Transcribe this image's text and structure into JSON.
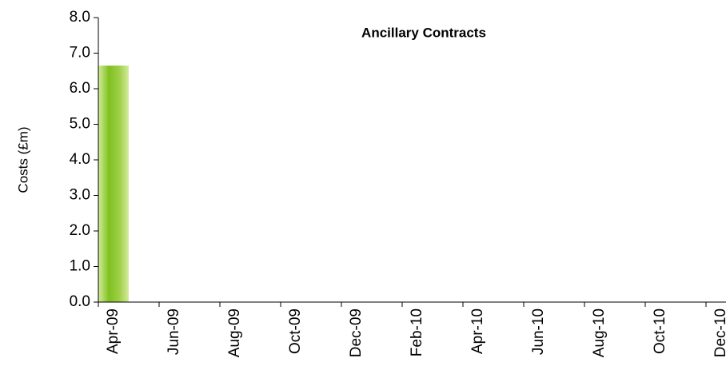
{
  "chart_data": {
    "type": "bar",
    "title": "Ancillary Contracts",
    "y_label": "Costs (£m)",
    "categories": [
      "Apr-09",
      null,
      "Jun-09",
      null,
      "Aug-09",
      null,
      "Oct-09",
      null,
      "Dec-09",
      null,
      "Feb-10",
      null,
      "Apr-10",
      null,
      "Jun-10",
      null,
      "Aug-10",
      null,
      "Oct-10",
      null,
      "Dec-10",
      null
    ],
    "values": [
      6.65,
      null,
      null,
      null,
      null,
      null,
      null,
      null,
      null,
      null,
      null,
      null,
      null,
      null,
      null,
      null,
      null,
      null,
      null,
      null,
      null,
      null
    ],
    "color": "#8cc63f",
    "ylim": [
      0,
      8
    ],
    "yticks": [
      {
        "value": 0,
        "label": "0.0"
      },
      {
        "value": 1,
        "label": "1.0"
      },
      {
        "value": 2,
        "label": "2.0"
      },
      {
        "value": 3,
        "label": "3.0"
      },
      {
        "value": 4,
        "label": "4.0"
      },
      {
        "value": 5,
        "label": "5.0"
      },
      {
        "value": 6,
        "label": "6.0"
      },
      {
        "value": 7,
        "label": "7.0"
      },
      {
        "value": 8,
        "label": "8.0"
      }
    ],
    "grid": false
  }
}
